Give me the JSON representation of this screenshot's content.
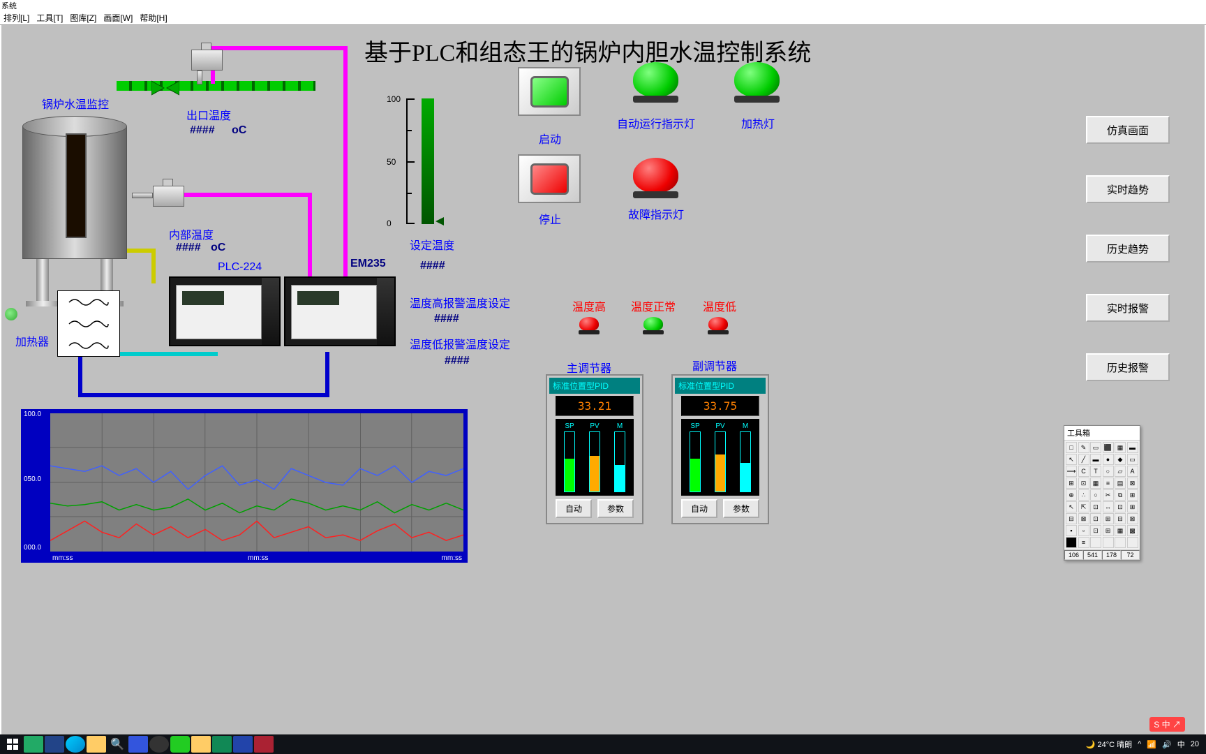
{
  "window_title": "系统",
  "menubar": [
    "排列[L]",
    "工具[T]",
    "图库[Z]",
    "画面[W]",
    "帮助[H]"
  ],
  "main_title": "基于PLC和组态王的锅炉内胆水温控制系统",
  "labels": {
    "tank": "锅炉水温监控",
    "outlet_temp": "出口温度",
    "inner_temp": "内部温度",
    "heater": "加热器",
    "plc": "PLC-224",
    "em": "EM235",
    "set_temp": "设定温度",
    "hi_alarm": "温度高报警温度设定",
    "lo_alarm": "温度低报警温度设定",
    "placeholder": "####",
    "deg": "oC",
    "start": "启动",
    "stop": "停止",
    "auto_run": "自动运行指示灯",
    "heat_lamp": "加热灯",
    "fault": "故障指示灯",
    "temp_hi": "温度高",
    "temp_ok": "温度正常",
    "temp_lo": "温度低",
    "main_reg": "主调节器",
    "aux_reg": "副调节器"
  },
  "scale": {
    "max": 100,
    "mid": 50,
    "min": 0
  },
  "nav_buttons": [
    "仿真画面",
    "实时趋势",
    "历史趋势",
    "实时报警",
    "历史报警"
  ],
  "pid": {
    "title": "标准位置型PID",
    "main_value": "33.21",
    "aux_value": "33.75",
    "cols": [
      "SP",
      "PV",
      "M"
    ],
    "btns": [
      "自动",
      "参数"
    ]
  },
  "trend": {
    "ylabels": [
      "100.0",
      "050.0",
      "000.0"
    ],
    "xlabel": "mm:ss",
    "series": [
      {
        "color": "#4060ff",
        "points": [
          62,
          60,
          58,
          62,
          55,
          60,
          50,
          58,
          45,
          55,
          62,
          48,
          52,
          45,
          60,
          55,
          50,
          48,
          60,
          55,
          62,
          50,
          58,
          55,
          60
        ]
      },
      {
        "color": "#00a000",
        "points": [
          35,
          33,
          34,
          36,
          30,
          34,
          30,
          32,
          38,
          30,
          35,
          28,
          33,
          30,
          38,
          35,
          30,
          33,
          30,
          36,
          28,
          34,
          30,
          35,
          30
        ]
      },
      {
        "color": "#ff2020",
        "points": [
          8,
          15,
          22,
          14,
          10,
          20,
          12,
          18,
          10,
          16,
          8,
          12,
          22,
          10,
          14,
          18,
          10,
          12,
          8,
          15,
          20,
          10,
          14,
          8,
          12
        ]
      }
    ]
  },
  "toolbox": {
    "title": "工具箱",
    "status": [
      "106",
      "541",
      "178",
      "72"
    ]
  },
  "taskbar": {
    "weather": "24°C 晴朗",
    "time": "20",
    "ime": "中"
  },
  "colors": {
    "canvas": "#c0c0c0",
    "green": "#00cc00",
    "red": "#e00000",
    "magenta": "#ff00ff",
    "blue": "#0000cc",
    "cyan": "#00cccc",
    "yellow": "#cccc00",
    "trend_bg": "#0000c0",
    "trend_grid": "#808080"
  }
}
